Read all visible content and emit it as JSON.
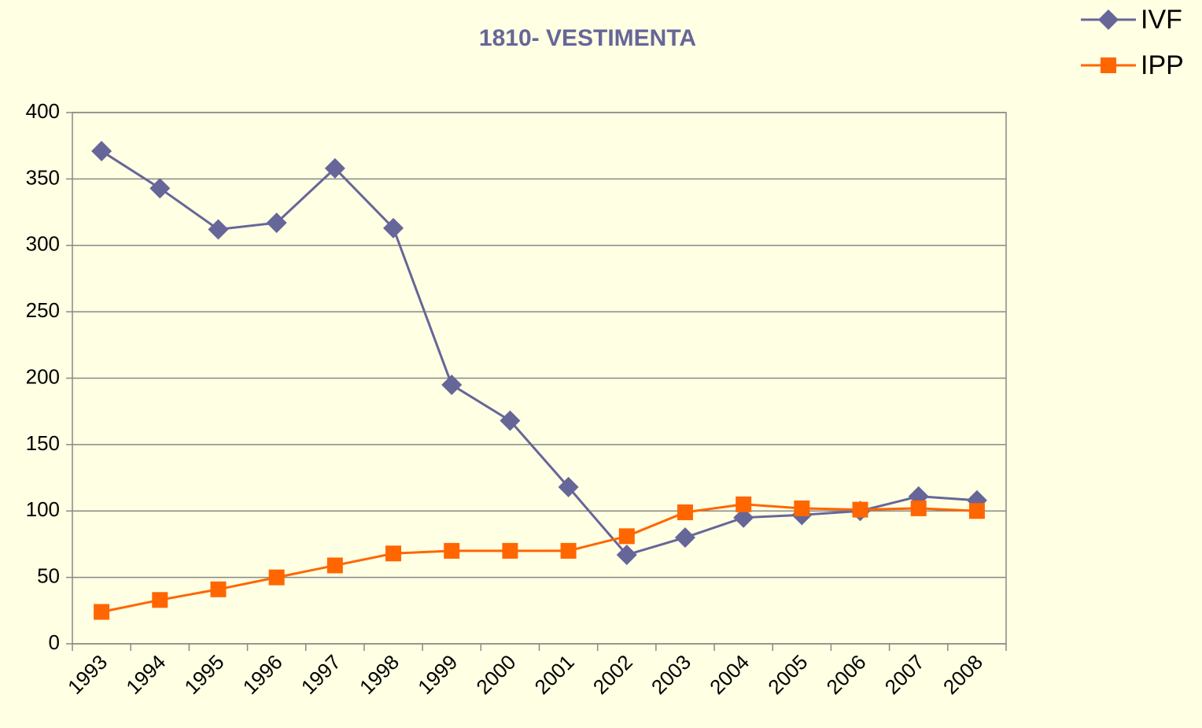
{
  "chart_data": {
    "type": "line",
    "title": "1810- VESTIMENTA",
    "categories": [
      "1993",
      "1994",
      "1995",
      "1996",
      "1997",
      "1998",
      "1999",
      "2000",
      "2001",
      "2002",
      "2003",
      "2004",
      "2005",
      "2006",
      "2007",
      "2008"
    ],
    "series": [
      {
        "name": "IVF",
        "color": "#666699",
        "marker": "diamond",
        "values": [
          371,
          343,
          312,
          317,
          358,
          313,
          195,
          168,
          118,
          67,
          80,
          95,
          97,
          100,
          111,
          108
        ]
      },
      {
        "name": "IPP",
        "color": "#ff6600",
        "marker": "square",
        "values": [
          24,
          33,
          41,
          50,
          59,
          68,
          70,
          70,
          70,
          81,
          99,
          105,
          102,
          101,
          102,
          100
        ]
      }
    ],
    "ylim": [
      0,
      400
    ],
    "yticks": [
      0,
      50,
      100,
      150,
      200,
      250,
      300,
      350,
      400
    ],
    "grid": true,
    "legend": "top-right"
  }
}
